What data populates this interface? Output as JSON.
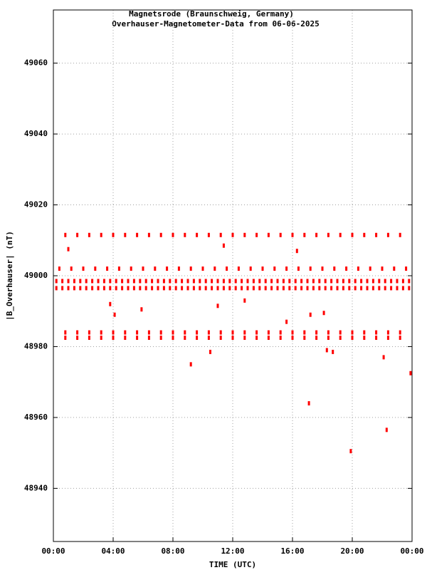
{
  "chart_data": {
    "type": "scatter",
    "title": "Magnetsrode (Braunschweig, Germany)",
    "subtitle": "Overhauser-Magnetometer-Data from 06-06-2025",
    "x_label": "TIME (UTC)",
    "y_label": "|B_Overhauser| (nT)",
    "color": "#ff0000",
    "grid": true,
    "xlim": [
      0,
      24
    ],
    "xticks": [
      {
        "value": 0,
        "label": "00:00"
      },
      {
        "value": 4,
        "label": "04:00"
      },
      {
        "value": 8,
        "label": "08:00"
      },
      {
        "value": 12,
        "label": "12:00"
      },
      {
        "value": 16,
        "label": "16:00"
      },
      {
        "value": 20,
        "label": "20:00"
      },
      {
        "value": 24,
        "label": "00:00"
      }
    ],
    "ylim": [
      48925,
      49075
    ],
    "yticks": [
      48940,
      48960,
      48980,
      49000,
      49020,
      49040,
      49060
    ],
    "x": [
      0.8,
      1.6,
      2.4,
      3.2,
      4,
      4.8,
      5.6,
      6.4,
      7.2,
      8,
      8.8,
      9.6,
      10.4,
      11.2,
      12,
      12.8,
      13.6,
      14.4,
      15.2,
      16,
      16.8,
      17.6,
      18.4,
      19.2,
      20,
      20.8,
      21.6,
      22.4,
      23.2,
      0.4,
      1.2,
      2,
      2.8,
      3.6,
      4.4,
      5.2,
      6,
      6.8,
      7.6,
      8.4,
      9.2,
      10,
      10.8,
      11.6,
      12.4,
      13.2,
      14,
      14.8,
      15.6,
      16.4,
      17.2,
      18,
      18.8,
      19.6,
      20.4,
      21.2,
      22,
      22.8,
      23.6,
      0.8,
      1.6,
      2.4,
      3.2,
      4,
      4.8,
      5.6,
      6.4,
      7.2,
      8,
      8.8,
      9.6,
      10.4,
      11.2,
      12,
      12.8,
      13.6,
      14.4,
      15.2,
      16,
      16.8,
      17.6,
      18.4,
      19.2,
      20,
      20.8,
      21.6,
      22.4,
      23.2,
      0.8,
      1.6,
      2.4,
      3.2,
      4,
      4.8,
      5.6,
      6.4,
      7.2,
      8,
      8.8,
      9.6,
      10.4,
      11.2,
      12,
      12.8,
      13.6,
      14.4,
      15.2,
      16,
      16.8,
      17.6,
      18.4,
      19.2,
      20,
      20.8,
      21.6,
      22.4,
      23.2,
      0.2,
      0.6,
      1,
      1.4,
      1.8,
      2.2,
      2.6,
      3,
      3.4,
      3.8,
      4.2,
      4.6,
      5,
      5.4,
      5.8,
      6.2,
      6.6,
      7,
      7.4,
      7.8,
      8.2,
      8.6,
      9,
      9.4,
      9.8,
      10.2,
      10.6,
      11,
      11.4,
      11.8,
      12.2,
      12.6,
      13,
      13.4,
      13.8,
      14.2,
      14.6,
      15,
      15.4,
      15.8,
      16.2,
      16.6,
      17,
      17.4,
      17.8,
      18.2,
      18.6,
      19,
      19.4,
      19.8,
      20.2,
      20.6,
      21,
      21.4,
      21.8,
      22.2,
      22.6,
      23,
      23.4,
      23.8,
      0.2,
      0.6,
      1,
      1.4,
      1.8,
      2.2,
      2.6,
      3,
      3.4,
      3.8,
      4.2,
      4.6,
      5,
      5.4,
      5.8,
      6.2,
      6.6,
      7,
      7.4,
      7.8,
      8.2,
      8.6,
      9,
      9.4,
      9.8,
      10.2,
      10.6,
      11,
      11.4,
      11.8,
      12.2,
      12.6,
      13,
      13.4,
      13.8,
      14.2,
      14.6,
      15,
      15.4,
      15.8,
      16.2,
      16.6,
      17,
      17.4,
      17.8,
      18.2,
      18.6,
      19,
      19.4,
      19.8,
      20.2,
      20.6,
      21,
      21.4,
      21.8,
      22.2,
      22.6,
      23,
      23.4,
      23.8,
      1,
      3.8,
      4.1,
      5.9,
      9.2,
      10.5,
      11,
      11.4,
      12.8,
      15.6,
      16.3,
      17.1,
      17.2,
      18.1,
      18.3,
      18.7,
      19.9,
      22.1,
      22.3,
      23.9
    ],
    "y": [
      49011.5,
      49011.5,
      49011.5,
      49011.5,
      49011.5,
      49011.5,
      49011.5,
      49011.5,
      49011.5,
      49011.5,
      49011.5,
      49011.5,
      49011.5,
      49011.5,
      49011.5,
      49011.5,
      49011.5,
      49011.5,
      49011.5,
      49011.5,
      49011.5,
      49011.5,
      49011.5,
      49011.5,
      49011.5,
      49011.5,
      49011.5,
      49011.5,
      49011.5,
      49002,
      49002,
      49002,
      49002,
      49002,
      49002,
      49002,
      49002,
      49002,
      49002,
      49002,
      49002,
      49002,
      49002,
      49002,
      49002,
      49002,
      49002,
      49002,
      49002,
      49002,
      49002,
      49002,
      49002,
      49002,
      49002,
      49002,
      49002,
      49002,
      49002,
      48984,
      48984,
      48984,
      48984,
      48984,
      48984,
      48984,
      48984,
      48984,
      48984,
      48984,
      48984,
      48984,
      48984,
      48984,
      48984,
      48984,
      48984,
      48984,
      48984,
      48984,
      48984,
      48984,
      48984,
      48984,
      48984,
      48984,
      48984,
      48984,
      48982.5,
      48982.5,
      48982.5,
      48982.5,
      48982.5,
      48982.5,
      48982.5,
      48982.5,
      48982.5,
      48982.5,
      48982.5,
      48982.5,
      48982.5,
      48982.5,
      48982.5,
      48982.5,
      48982.5,
      48982.5,
      48982.5,
      48982.5,
      48982.5,
      48982.5,
      48982.5,
      48982.5,
      48982.5,
      48982.5,
      48982.5,
      48982.5,
      48982.5,
      48998.5,
      48998.5,
      48998.5,
      48998.5,
      48998.5,
      48998.5,
      48998.5,
      48998.5,
      48998.5,
      48998.5,
      48998.5,
      48998.5,
      48998.5,
      48998.5,
      48998.5,
      48998.5,
      48998.5,
      48998.5,
      48998.5,
      48998.5,
      48998.5,
      48998.5,
      48998.5,
      48998.5,
      48998.5,
      48998.5,
      48998.5,
      48998.5,
      48998.5,
      48998.5,
      48998.5,
      48998.5,
      48998.5,
      48998.5,
      48998.5,
      48998.5,
      48998.5,
      48998.5,
      48998.5,
      48998.5,
      48998.5,
      48998.5,
      48998.5,
      48998.5,
      48998.5,
      48998.5,
      48998.5,
      48998.5,
      48998.5,
      48998.5,
      48998.5,
      48998.5,
      48998.5,
      48998.5,
      48998.5,
      48998.5,
      48998.5,
      48998.5,
      48998.5,
      48998.5,
      48996.5,
      48996.5,
      48996.5,
      48996.5,
      48996.5,
      48996.5,
      48996.5,
      48996.5,
      48996.5,
      48996.5,
      48996.5,
      48996.5,
      48996.5,
      48996.5,
      48996.5,
      48996.5,
      48996.5,
      48996.5,
      48996.5,
      48996.5,
      48996.5,
      48996.5,
      48996.5,
      48996.5,
      48996.5,
      48996.5,
      48996.5,
      48996.5,
      48996.5,
      48996.5,
      48996.5,
      48996.5,
      48996.5,
      48996.5,
      48996.5,
      48996.5,
      48996.5,
      48996.5,
      48996.5,
      48996.5,
      48996.5,
      48996.5,
      48996.5,
      48996.5,
      48996.5,
      48996.5,
      48996.5,
      48996.5,
      48996.5,
      48996.5,
      48996.5,
      48996.5,
      48996.5,
      48996.5,
      48996.5,
      48996.5,
      48996.5,
      48996.5,
      48996.5,
      48996.5,
      49007.5,
      48992,
      48989,
      48990.5,
      48975,
      48978.5,
      48991.5,
      49008.5,
      48993,
      48987,
      49007,
      48964,
      48989,
      48989.5,
      48979,
      48978.5,
      48950.5,
      48977,
      48956.5,
      48972.5
    ]
  }
}
